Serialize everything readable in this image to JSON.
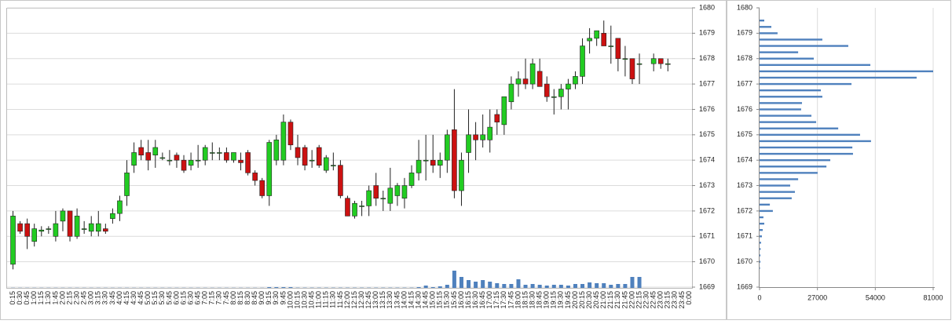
{
  "chart_data": [
    {
      "type": "candlestick",
      "categories": [
        "0:15",
        "0:30",
        "0:45",
        "1:00",
        "1:15",
        "1:30",
        "1:45",
        "2:00",
        "2:15",
        "2:30",
        "2:45",
        "3:00",
        "3:15",
        "3:30",
        "3:45",
        "4:00",
        "4:15",
        "4:30",
        "4:45",
        "5:00",
        "5:15",
        "5:30",
        "5:45",
        "6:00",
        "6:15",
        "6:30",
        "6:45",
        "7:00",
        "7:15",
        "7:30",
        "7:45",
        "8:00",
        "8:15",
        "8:30",
        "8:45",
        "9:00",
        "9:15",
        "9:30",
        "9:45",
        "10:00",
        "10:15",
        "10:30",
        "10:45",
        "11:00",
        "11:15",
        "11:30",
        "11:45",
        "12:00",
        "12:15",
        "12:30",
        "12:45",
        "13:00",
        "13:15",
        "13:30",
        "13:45",
        "14:00",
        "14:15",
        "14:30",
        "14:45",
        "15:00",
        "15:15",
        "15:30",
        "15:45",
        "16:00",
        "16:15",
        "16:30",
        "16:45",
        "17:00",
        "17:15",
        "17:30",
        "17:45",
        "18:00",
        "18:15",
        "18:30",
        "18:45",
        "19:00",
        "19:15",
        "19:30",
        "19:45",
        "20:00",
        "20:15",
        "20:30",
        "20:45",
        "21:00",
        "21:15",
        "21:30",
        "21:45",
        "22:00",
        "22:15",
        "22:30",
        "22:45",
        "23:00",
        "23:15",
        "23:30",
        "23:45",
        "0:00"
      ],
      "open": [
        1669.9,
        1671.5,
        1671.5,
        1670.8,
        1671.2,
        1671.3,
        1671.0,
        1671.6,
        1672.0,
        1671.0,
        1671.3,
        1671.2,
        1671.2,
        1671.3,
        1671.7,
        1671.9,
        1672.6,
        1673.8,
        1674.5,
        1674.3,
        1674.2,
        1674.1,
        1674.0,
        1674.2,
        1674.0,
        1673.8,
        1674.0,
        1674.0,
        1674.3,
        1674.3,
        1674.3,
        1674.0,
        1674.0,
        1674.3,
        1673.5,
        1673.2,
        1672.6,
        1674.0,
        1674.0,
        1675.5,
        1674.5,
        1674.5,
        1674.0,
        1674.5,
        1673.6,
        1673.8,
        1673.8,
        1672.5,
        1671.8,
        1672.2,
        1672.2,
        1673.0,
        1672.5,
        1672.3,
        1672.6,
        1672.5,
        1673.0,
        1673.5,
        1674.0,
        1674.0,
        1673.8,
        1674.0,
        1675.2,
        1672.8,
        1674.3,
        1675.0,
        1674.8,
        1674.8,
        1675.8,
        1675.4,
        1676.3,
        1677.0,
        1677.2,
        1677.0,
        1677.5,
        1677.0,
        1676.5,
        1676.5,
        1676.8,
        1677.0,
        1677.3,
        1678.7,
        1678.8,
        1679.0,
        1678.5,
        1678.8,
        1678.0,
        1678.0,
        1677.8,
        null,
        1677.8,
        1678.0,
        1677.8,
        null,
        null,
        null
      ],
      "high": [
        1672.0,
        1671.6,
        1671.7,
        1671.5,
        1671.4,
        1671.4,
        1672.0,
        1672.1,
        1672.0,
        1672.1,
        1671.6,
        1671.8,
        1672.0,
        1671.5,
        1672.1,
        1672.6,
        1674.0,
        1674.7,
        1674.8,
        1674.8,
        1674.8,
        1674.3,
        1674.4,
        1674.3,
        1674.2,
        1674.3,
        1674.6,
        1674.6,
        1674.7,
        1674.5,
        1674.5,
        1674.3,
        1674.3,
        1674.4,
        1673.6,
        1673.3,
        1674.8,
        1675.0,
        1675.8,
        1675.6,
        1675.0,
        1674.6,
        1674.4,
        1674.6,
        1674.2,
        1674.3,
        1674.0,
        1672.6,
        1672.4,
        1672.4,
        1673.0,
        1673.5,
        1672.8,
        1673.7,
        1673.1,
        1673.3,
        1673.8,
        1674.8,
        1675.0,
        1675.0,
        1674.3,
        1675.2,
        1676.8,
        1674.3,
        1676.0,
        1675.5,
        1675.8,
        1676.0,
        1676.0,
        1676.5,
        1677.3,
        1677.5,
        1678.0,
        1678.0,
        1678.0,
        1677.3,
        1676.8,
        1677.0,
        1677.2,
        1677.5,
        1678.8,
        1679.2,
        1679.1,
        1679.5,
        1679.3,
        1678.8,
        1678.5,
        1678.0,
        1678.2,
        null,
        1678.2,
        1678.0,
        1678.0,
        null,
        null,
        null
      ],
      "low": [
        1669.7,
        1671.1,
        1670.5,
        1670.6,
        1671.0,
        1671.1,
        1670.8,
        1671.2,
        1670.8,
        1670.9,
        1671.1,
        1671.0,
        1671.0,
        1671.1,
        1671.5,
        1671.6,
        1672.2,
        1673.5,
        1674.0,
        1673.6,
        1673.7,
        1674.0,
        1673.8,
        1673.7,
        1673.5,
        1673.6,
        1673.7,
        1673.8,
        1674.0,
        1674.0,
        1673.9,
        1673.9,
        1673.6,
        1673.4,
        1673.0,
        1672.5,
        1672.2,
        1673.8,
        1673.8,
        1674.4,
        1673.8,
        1673.6,
        1673.7,
        1673.7,
        1673.5,
        1673.6,
        1672.5,
        1671.8,
        1671.7,
        1671.8,
        1671.8,
        1672.2,
        1672.0,
        1672.0,
        1672.2,
        1672.1,
        1672.9,
        1673.2,
        1673.2,
        1673.5,
        1673.3,
        1673.5,
        1672.5,
        1672.2,
        1673.5,
        1674.0,
        1674.5,
        1674.3,
        1675.0,
        1675.0,
        1676.0,
        1676.5,
        1676.8,
        1676.8,
        1676.9,
        1676.3,
        1675.8,
        1676.0,
        1676.0,
        1676.8,
        1677.0,
        1678.2,
        1678.5,
        1678.5,
        1677.8,
        1677.5,
        1677.3,
        1677.0,
        1677.0,
        null,
        1677.5,
        1677.6,
        1677.5,
        null,
        null,
        null
      ],
      "close": [
        1671.8,
        1671.2,
        1671.0,
        1671.3,
        1671.25,
        1671.3,
        1671.5,
        1672.0,
        1671.0,
        1671.8,
        1671.3,
        1671.5,
        1671.5,
        1671.2,
        1671.9,
        1672.4,
        1673.5,
        1674.3,
        1674.2,
        1674.0,
        1674.5,
        1674.1,
        1674.0,
        1674.0,
        1673.6,
        1674.0,
        1674.0,
        1674.5,
        1674.3,
        1674.3,
        1674.0,
        1674.3,
        1673.9,
        1673.5,
        1673.2,
        1672.6,
        1674.7,
        1674.8,
        1675.5,
        1674.6,
        1674.1,
        1673.8,
        1674.0,
        1673.8,
        1674.1,
        1673.8,
        1672.6,
        1671.8,
        1672.3,
        1672.2,
        1672.8,
        1672.5,
        1672.5,
        1672.9,
        1673.0,
        1673.0,
        1673.5,
        1674.0,
        1674.0,
        1673.8,
        1674.0,
        1675.0,
        1672.8,
        1674.0,
        1675.0,
        1674.8,
        1675.0,
        1675.3,
        1675.5,
        1676.5,
        1677.0,
        1677.2,
        1677.0,
        1677.8,
        1676.9,
        1676.5,
        1676.5,
        1676.8,
        1677.0,
        1677.3,
        1678.5,
        1678.8,
        1679.1,
        1678.5,
        1678.5,
        1678.0,
        1678.0,
        1677.2,
        1677.8,
        null,
        1678.0,
        1677.8,
        1677.8,
        null,
        null,
        null
      ],
      "volume": [
        0.2,
        0.2,
        0.2,
        0.2,
        0.2,
        0.2,
        0.2,
        0.2,
        0.2,
        0.2,
        0.2,
        0.2,
        0.2,
        0.2,
        0.2,
        0.2,
        0.2,
        0.2,
        0.2,
        0.2,
        0.2,
        0.2,
        0.2,
        0.2,
        0.2,
        0.2,
        0.2,
        0.2,
        0.2,
        0.2,
        0.2,
        0.2,
        0.2,
        0.2,
        0.2,
        0.2,
        1,
        1,
        1,
        1,
        0.3,
        0.3,
        0.3,
        0.3,
        0.3,
        0.3,
        0.3,
        0.3,
        0.3,
        0.3,
        0.3,
        0.3,
        0.3,
        0.3,
        0.3,
        0.3,
        0.3,
        1,
        3,
        1,
        2,
        4,
        22,
        14,
        10,
        8,
        10,
        8,
        6,
        5,
        5,
        11,
        4,
        5,
        4,
        3,
        4,
        4,
        3,
        5,
        5,
        7,
        6,
        6,
        4,
        5,
        5,
        14,
        14,
        null,
        0,
        0,
        0,
        null,
        null,
        null
      ],
      "up_color": "#22cc22",
      "down_color": "#cc1111",
      "volume_color": "#4f81bd",
      "ylim": [
        1669,
        1680
      ],
      "yticks": [
        1669,
        1670,
        1671,
        1672,
        1673,
        1674,
        1675,
        1676,
        1677,
        1678,
        1679,
        1680
      ],
      "grid": true
    },
    {
      "type": "barh",
      "y": [
        1679.5,
        1679.25,
        1679.0,
        1678.75,
        1678.5,
        1678.25,
        1678.0,
        1677.75,
        1677.5,
        1677.25,
        1677.0,
        1676.75,
        1676.5,
        1676.25,
        1676.0,
        1675.75,
        1675.5,
        1675.25,
        1675.0,
        1674.75,
        1674.5,
        1674.25,
        1674.0,
        1673.75,
        1673.5,
        1673.25,
        1673.0,
        1672.75,
        1672.5,
        1672.25,
        1672.0,
        1671.75,
        1671.5,
        1671.25,
        1671.0,
        1670.75,
        1670.5,
        1670.25,
        1670.0,
        1669.75
      ],
      "values": [
        2200,
        5500,
        8400,
        29300,
        41400,
        18000,
        25300,
        51700,
        81000,
        73300,
        42900,
        28600,
        29300,
        19800,
        19400,
        24200,
        26400,
        36700,
        46900,
        52000,
        43300,
        43600,
        33000,
        31200,
        27100,
        18000,
        14300,
        16500,
        15000,
        4800,
        6200,
        1800,
        2200,
        1500,
        1100,
        700,
        500,
        400,
        400,
        200
      ],
      "color": "#4f81bd",
      "xlim": [
        0,
        81000
      ],
      "xticks": [
        0,
        27000,
        54000,
        81000
      ],
      "ylim": [
        1669,
        1680
      ],
      "yticks": [
        1669,
        1670,
        1671,
        1672,
        1673,
        1674,
        1675,
        1676,
        1677,
        1678,
        1679,
        1680
      ],
      "grid": true
    }
  ]
}
